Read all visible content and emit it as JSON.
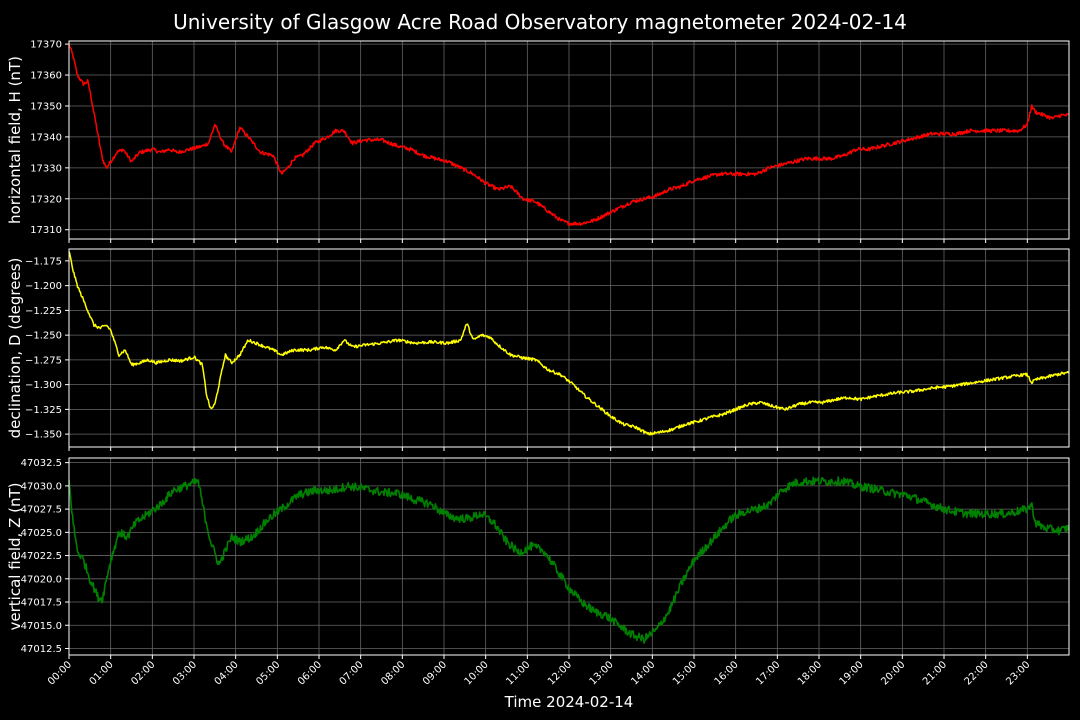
{
  "colors": {
    "background": "#000000",
    "text": "#ffffff",
    "grid": "#666666",
    "frame": "#ffffff",
    "h_series": "#ff0000",
    "d_series": "#ffff00",
    "z_series": "#008000"
  },
  "chart_data": {
    "type": "line",
    "title": "University of Glasgow Acre Road Observatory magnetometer 2024-02-14",
    "xlabel": "Time 2024-02-14",
    "x_ticks": [
      "00:00",
      "01:00",
      "02:00",
      "03:00",
      "04:00",
      "05:00",
      "06:00",
      "07:00",
      "08:00",
      "09:00",
      "10:00",
      "11:00",
      "12:00",
      "13:00",
      "14:00",
      "15:00",
      "16:00",
      "17:00",
      "18:00",
      "19:00",
      "20:00",
      "21:00",
      "22:00",
      "23:00"
    ],
    "xlim_hours": [
      0,
      24
    ],
    "grid": true,
    "panels": [
      {
        "ylabel": "horizontal field, H (nT)",
        "ylim": [
          17307,
          17371
        ],
        "y_ticks": [
          17310,
          17320,
          17330,
          17340,
          17350,
          17360,
          17370
        ],
        "y_tick_labels": [
          "17310",
          "17320",
          "17330",
          "17340",
          "17350",
          "17360",
          "17370"
        ],
        "noise": 0.6,
        "series": [
          {
            "color_key": "h_series",
            "x": [
              0,
              0.1,
              0.2,
              0.35,
              0.45,
              0.5,
              0.65,
              0.8,
              0.9,
              1.0,
              1.15,
              1.3,
              1.4,
              1.5,
              1.7,
              2.0,
              2.2,
              2.4,
              2.6,
              2.9,
              3.2,
              3.35,
              3.5,
              3.7,
              3.9,
              4.1,
              4.3,
              4.6,
              4.9,
              5.1,
              5.25,
              5.4,
              5.6,
              5.9,
              6.2,
              6.4,
              6.6,
              6.8,
              7.1,
              7.5,
              7.9,
              8.2,
              8.5,
              8.8,
              9.1,
              9.4,
              9.7,
              10.0,
              10.3,
              10.6,
              10.9,
              11.2,
              11.5,
              11.8,
              12.0,
              12.3,
              12.6,
              12.9,
              13.2,
              13.5,
              13.8,
              14.1,
              14.4,
              14.7,
              15.0,
              15.3,
              15.6,
              15.9,
              16.2,
              16.5,
              16.8,
              17.1,
              17.4,
              17.7,
              18.0,
              18.3,
              18.6,
              18.9,
              19.2,
              19.5,
              19.8,
              20.1,
              20.4,
              20.7,
              21.0,
              21.3,
              21.6,
              21.9,
              22.2,
              22.5,
              22.8,
              23.0,
              23.1,
              23.2,
              23.4,
              23.6,
              23.8,
              24.0
            ],
            "y": [
              17370,
              17366,
              17360,
              17357,
              17358,
              17355,
              17344,
              17333,
              17330,
              17332,
              17335,
              17336,
              17334,
              17332,
              17335,
              17336,
              17335,
              17336,
              17335,
              17336,
              17337,
              17338,
              17344,
              17338,
              17335,
              17343,
              17340,
              17335,
              17334,
              17328,
              17330,
              17333,
              17334,
              17338,
              17340,
              17342,
              17342,
              17338,
              17339,
              17339,
              17337,
              17336,
              17334,
              17333,
              17332,
              17330,
              17328,
              17325,
              17323,
              17324,
              17320,
              17319,
              17316,
              17313,
              17312,
              17312,
              17313,
              17315,
              17317,
              17319,
              17320,
              17321,
              17323,
              17324,
              17326,
              17327,
              17328,
              17328,
              17328,
              17328,
              17330,
              17331,
              17332,
              17333,
              17333,
              17333,
              17334,
              17336,
              17336,
              17337,
              17338,
              17339,
              17340,
              17341,
              17341,
              17341,
              17342,
              17342,
              17342,
              17342,
              17342,
              17344,
              17350,
              17348,
              17347,
              17346,
              17347,
              17347
            ]
          }
        ]
      },
      {
        "ylabel": "declination, D (degrees)",
        "ylim": [
          -1.363,
          -1.163
        ],
        "y_ticks": [
          -1.35,
          -1.325,
          -1.3,
          -1.275,
          -1.25,
          -1.225,
          -1.2,
          -1.175
        ],
        "y_tick_labels": [
          "−1.350",
          "−1.325",
          "−1.300",
          "−1.275",
          "−1.250",
          "−1.225",
          "−1.200",
          "−1.175"
        ],
        "noise": 0.0015,
        "series": [
          {
            "color_key": "d_series",
            "x": [
              0,
              0.1,
              0.2,
              0.4,
              0.6,
              0.75,
              0.9,
              1.0,
              1.2,
              1.35,
              1.5,
              1.7,
              1.9,
              2.1,
              2.4,
              2.7,
              3.0,
              3.2,
              3.3,
              3.4,
              3.5,
              3.6,
              3.75,
              3.9,
              4.1,
              4.3,
              4.6,
              4.9,
              5.1,
              5.4,
              5.8,
              6.1,
              6.4,
              6.6,
              6.8,
              7.1,
              7.5,
              7.9,
              8.3,
              8.7,
              9.1,
              9.4,
              9.55,
              9.7,
              9.9,
              10.1,
              10.3,
              10.6,
              10.9,
              11.2,
              11.5,
              11.8,
              12.1,
              12.4,
              12.7,
              13.0,
              13.3,
              13.6,
              13.9,
              14.2,
              14.5,
              14.8,
              15.1,
              15.4,
              15.7,
              16.0,
              16.3,
              16.6,
              16.9,
              17.2,
              17.5,
              17.8,
              18.1,
              18.4,
              18.7,
              19.0,
              19.3,
              19.6,
              19.9,
              20.2,
              20.5,
              20.8,
              21.1,
              21.4,
              21.7,
              22.0,
              22.3,
              22.6,
              22.9,
              23.0,
              23.1,
              23.2,
              23.4,
              23.6,
              23.8,
              24.0
            ],
            "y": [
              -1.165,
              -1.185,
              -1.2,
              -1.22,
              -1.24,
              -1.243,
              -1.24,
              -1.245,
              -1.27,
              -1.265,
              -1.28,
              -1.278,
              -1.275,
              -1.278,
              -1.275,
              -1.276,
              -1.272,
              -1.28,
              -1.31,
              -1.325,
              -1.32,
              -1.3,
              -1.27,
              -1.278,
              -1.27,
              -1.255,
              -1.26,
              -1.265,
              -1.27,
              -1.265,
              -1.265,
              -1.262,
              -1.265,
              -1.255,
              -1.262,
              -1.26,
              -1.258,
              -1.255,
              -1.258,
              -1.257,
              -1.258,
              -1.255,
              -1.238,
              -1.255,
              -1.25,
              -1.252,
              -1.26,
              -1.27,
              -1.273,
              -1.275,
              -1.285,
              -1.29,
              -1.3,
              -1.312,
              -1.322,
              -1.332,
              -1.34,
              -1.343,
              -1.35,
              -1.348,
              -1.345,
              -1.34,
              -1.337,
              -1.333,
              -1.33,
              -1.325,
              -1.32,
              -1.318,
              -1.322,
              -1.325,
              -1.32,
              -1.318,
              -1.318,
              -1.315,
              -1.313,
              -1.315,
              -1.312,
              -1.31,
              -1.308,
              -1.307,
              -1.305,
              -1.303,
              -1.302,
              -1.3,
              -1.298,
              -1.296,
              -1.294,
              -1.292,
              -1.29,
              -1.29,
              -1.298,
              -1.295,
              -1.293,
              -1.291,
              -1.289,
              -1.288
            ]
          }
        ]
      },
      {
        "ylabel": "vertical field, Z (nT)",
        "ylim": [
          47011.8,
          47033
        ],
        "y_ticks": [
          47012.5,
          47015.0,
          47017.5,
          47020.0,
          47022.5,
          47025.0,
          47027.5,
          47030.0,
          47032.5
        ],
        "y_tick_labels": [
          "47012.5",
          "47015.0",
          "47017.5",
          "47020.0",
          "47022.5",
          "47025.0",
          "47027.5",
          "47030.0",
          "47032.5"
        ],
        "noise": 0.45,
        "series": [
          {
            "color_key": "z_series",
            "x": [
              0,
              0.1,
              0.2,
              0.35,
              0.5,
              0.7,
              0.8,
              0.9,
              1.0,
              1.2,
              1.4,
              1.6,
              1.9,
              2.2,
              2.5,
              2.8,
              3.1,
              3.25,
              3.4,
              3.6,
              3.75,
              3.9,
              4.1,
              4.4,
              4.8,
              5.1,
              5.5,
              5.9,
              6.3,
              6.7,
              7.1,
              7.5,
              7.9,
              8.3,
              8.7,
              9.0,
              9.3,
              9.6,
              9.9,
              10.2,
              10.5,
              10.8,
              11.1,
              11.4,
              11.7,
              12.0,
              12.3,
              12.6,
              12.9,
              13.2,
              13.5,
              13.8,
              14.1,
              14.4,
              14.7,
              15.0,
              15.3,
              15.6,
              15.9,
              16.2,
              16.5,
              16.8,
              17.1,
              17.4,
              17.7,
              18.0,
              18.3,
              18.6,
              18.9,
              19.2,
              19.5,
              19.8,
              20.1,
              20.4,
              20.7,
              21.0,
              21.3,
              21.6,
              21.9,
              22.2,
              22.5,
              22.8,
              23.0,
              23.1,
              23.2,
              23.4,
              23.6,
              23.8,
              24.0
            ],
            "y": [
              47030.5,
              47026,
              47023,
              47022,
              47020,
              47018,
              47017.8,
              47020,
              47022,
              47025,
              47024.5,
              47026,
              47027,
              47028,
              47029.5,
              47030,
              47030.5,
              47027,
              47024,
              47021.5,
              47023,
              47024.5,
              47024,
              47024.5,
              47026.5,
              47027.5,
              47029,
              47029.5,
              47029.5,
              47030,
              47029.7,
              47029.3,
              47029.2,
              47028.5,
              47028,
              47027,
              47026.5,
              47026.5,
              47027,
              47026,
              47024,
              47022.8,
              47023.5,
              47023,
              47021,
              47019,
              47017.5,
              47016.5,
              47016,
              47015,
              47014,
              47013.5,
              47014.5,
              47016.5,
              47019.5,
              47022,
              47023.5,
              47025,
              47026.5,
              47027.2,
              47027.5,
              47028,
              47029.5,
              47030.3,
              47030.5,
              47030.5,
              47030.5,
              47030.5,
              47030,
              47029.8,
              47029.5,
              47029.2,
              47029,
              47028.5,
              47028,
              47027.5,
              47027.2,
              47027,
              47027,
              47027,
              47027,
              47027.3,
              47027.5,
              47028,
              47026,
              47025.5,
              47025.3,
              47025.2,
              47025.5
            ]
          }
        ]
      }
    ]
  }
}
